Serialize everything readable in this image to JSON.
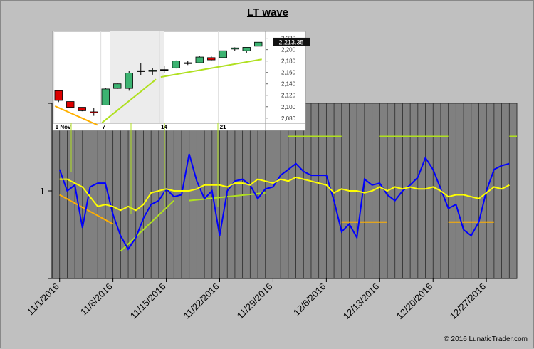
{
  "title": "LT wave",
  "copyright": "© 2016 LunaticTrader.com",
  "colors": {
    "page_bg": "#c0c0c0",
    "plot_bg": "#808080",
    "blue_line": "#0000ff",
    "yellow_line": "#ffff00",
    "orange_marker": "#ffb000",
    "lime_marker": "#b0e020",
    "green_candle": "#3cb371",
    "red_candle": "#dd0000"
  },
  "chart_data": [
    {
      "type": "line",
      "title": "LT wave",
      "ylabel": "",
      "y_tick_labels": [
        "1"
      ],
      "x_tick_labels": [
        "11/1/2016",
        "11/8/2016",
        "11/15/2016",
        "11/22/2016",
        "11/29/2016",
        "12/6/2016",
        "12/13/2016",
        "12/20/2016",
        "12/27/2016"
      ],
      "x_range": [
        "2016-10-31",
        "2016-12-31"
      ],
      "ylim": [
        0.55,
        1.45
      ],
      "grid": "vertical daily bars",
      "series": [
        {
          "color": "blue",
          "x": [
            "2016-11-01",
            "2016-11-02",
            "2016-11-03",
            "2016-11-04",
            "2016-11-05",
            "2016-11-06",
            "2016-11-07",
            "2016-11-08",
            "2016-11-09",
            "2016-11-10",
            "2016-11-11",
            "2016-11-12",
            "2016-11-13",
            "2016-11-14",
            "2016-11-15",
            "2016-11-16",
            "2016-11-17",
            "2016-11-18",
            "2016-11-19",
            "2016-11-20",
            "2016-11-21",
            "2016-11-22",
            "2016-11-23",
            "2016-11-24",
            "2016-11-25",
            "2016-11-26",
            "2016-11-27",
            "2016-11-28",
            "2016-11-29",
            "2016-11-30",
            "2016-12-01",
            "2016-12-02",
            "2016-12-03",
            "2016-12-04",
            "2016-12-05",
            "2016-12-06",
            "2016-12-07",
            "2016-12-08",
            "2016-12-09",
            "2016-12-10",
            "2016-12-11",
            "2016-12-12",
            "2016-12-13",
            "2016-12-14",
            "2016-12-15",
            "2016-12-16",
            "2016-12-17",
            "2016-12-18",
            "2016-12-19",
            "2016-12-20",
            "2016-12-21",
            "2016-12-22",
            "2016-12-23",
            "2016-12-24",
            "2016-12-25",
            "2016-12-26",
            "2016-12-27",
            "2016-12-28",
            "2016-12-29",
            "2016-12-30"
          ],
          "values": [
            1.11,
            1.0,
            1.03,
            0.81,
            1.02,
            1.04,
            1.04,
            0.88,
            0.77,
            0.7,
            0.76,
            0.86,
            0.93,
            0.95,
            1.01,
            0.97,
            0.98,
            1.19,
            1.05,
            0.96,
            1.0,
            0.77,
            1.0,
            1.05,
            1.06,
            1.03,
            0.96,
            1.01,
            1.02,
            1.08,
            1.11,
            1.14,
            1.1,
            1.08,
            1.08,
            1.08,
            0.95,
            0.79,
            0.83,
            0.76,
            1.06,
            1.03,
            1.04,
            0.98,
            0.95,
            1.0,
            1.03,
            1.07,
            1.17,
            1.11,
            1.01,
            0.91,
            0.93,
            0.8,
            0.77,
            0.84,
            1.0,
            1.11,
            1.13,
            1.14
          ]
        },
        {
          "color": "yellow",
          "x": [
            "2016-11-01",
            "2016-11-02",
            "2016-11-03",
            "2016-11-04",
            "2016-11-05",
            "2016-11-06",
            "2016-11-07",
            "2016-11-08",
            "2016-11-09",
            "2016-11-10",
            "2016-11-11",
            "2016-11-12",
            "2016-11-13",
            "2016-11-14",
            "2016-11-15",
            "2016-11-16",
            "2016-11-17",
            "2016-11-18",
            "2016-11-19",
            "2016-11-20",
            "2016-11-21",
            "2016-11-22",
            "2016-11-23",
            "2016-11-24",
            "2016-11-25",
            "2016-11-26",
            "2016-11-27",
            "2016-11-28",
            "2016-11-29",
            "2016-11-30",
            "2016-12-01",
            "2016-12-02",
            "2016-12-03",
            "2016-12-04",
            "2016-12-05",
            "2016-12-06",
            "2016-12-07",
            "2016-12-08",
            "2016-12-09",
            "2016-12-10",
            "2016-12-11",
            "2016-12-12",
            "2016-12-13",
            "2016-12-14",
            "2016-12-15",
            "2016-12-16",
            "2016-12-17",
            "2016-12-18",
            "2016-12-19",
            "2016-12-20",
            "2016-12-21",
            "2016-12-22",
            "2016-12-23",
            "2016-12-24",
            "2016-12-25",
            "2016-12-26",
            "2016-12-27",
            "2016-12-28",
            "2016-12-29",
            "2016-12-30"
          ],
          "values": [
            1.06,
            1.06,
            1.04,
            1.02,
            0.97,
            0.92,
            0.93,
            0.92,
            0.9,
            0.92,
            0.9,
            0.93,
            0.99,
            1.0,
            1.01,
            1.0,
            1.0,
            1.0,
            1.01,
            1.03,
            1.03,
            1.03,
            1.02,
            1.04,
            1.04,
            1.03,
            1.06,
            1.05,
            1.04,
            1.06,
            1.05,
            1.07,
            1.06,
            1.05,
            1.04,
            1.03,
            0.99,
            1.01,
            1.0,
            1.0,
            0.99,
            1.0,
            1.02,
            1.0,
            1.02,
            1.01,
            1.02,
            1.01,
            1.01,
            1.02,
            1.0,
            0.97,
            0.98,
            0.98,
            0.97,
            0.96,
            0.99,
            1.02,
            1.01,
            1.03
          ]
        }
      ],
      "horizontal_markers": [
        {
          "color": "yellow-green",
          "from": "2016-12-01",
          "to": "2016-12-08",
          "y": 1.28
        },
        {
          "color": "orange",
          "from": "2016-12-08",
          "to": "2016-12-14",
          "y": 0.84
        },
        {
          "color": "yellow-green",
          "from": "2016-12-13",
          "to": "2016-12-22",
          "y": 1.28
        },
        {
          "color": "orange",
          "from": "2016-12-22",
          "to": "2016-12-28",
          "y": 0.84
        },
        {
          "color": "yellow-green",
          "from": "2016-12-30",
          "to": "2016-12-31",
          "y": 1.28
        }
      ],
      "trend_markers": [
        {
          "color": "orange",
          "from": [
            "2016-11-01",
            0.98
          ],
          "to": [
            "2016-11-08",
            0.83
          ]
        },
        {
          "color": "yellow-green",
          "from": [
            "2016-11-09",
            0.69
          ],
          "to": [
            "2016-11-16",
            0.95
          ]
        },
        {
          "color": "yellow-green",
          "from": [
            "2016-11-18",
            0.95
          ],
          "to": [
            "2016-11-28",
            0.99
          ]
        }
      ]
    },
    {
      "type": "candlestick",
      "x_tick_labels": [
        "1 Nov",
        "7",
        "14",
        "21"
      ],
      "y_tick_labels": [
        "2,220",
        "2,200",
        "2,180",
        "2,160",
        "2,140",
        "2,120",
        "2,100",
        "2,080"
      ],
      "ylim": [
        2071,
        2232
      ],
      "last_price_label": "2,213.35",
      "candles": [
        {
          "date": "2016-11-01",
          "open": 2128,
          "high": 2128,
          "low": 2108,
          "close": 2111
        },
        {
          "date": "2016-11-02",
          "open": 2109,
          "high": 2109,
          "low": 2099,
          "close": 2099
        },
        {
          "date": "2016-11-03",
          "open": 2099,
          "high": 2099,
          "low": 2092,
          "close": 2093
        },
        {
          "date": "2016-11-04",
          "open": 2091,
          "high": 2098,
          "low": 2084,
          "close": 2089
        },
        {
          "date": "2016-11-07",
          "open": 2103,
          "high": 2133,
          "low": 2103,
          "close": 2131
        },
        {
          "date": "2016-11-08",
          "open": 2132,
          "high": 2141,
          "low": 2131,
          "close": 2140
        },
        {
          "date": "2016-11-09",
          "open": 2132,
          "high": 2163,
          "low": 2128,
          "close": 2159
        },
        {
          "date": "2016-11-10",
          "open": 2163,
          "high": 2176,
          "low": 2155,
          "close": 2163
        },
        {
          "date": "2016-11-11",
          "open": 2162,
          "high": 2168,
          "low": 2156,
          "close": 2164
        },
        {
          "date": "2016-11-14",
          "open": 2165,
          "high": 2172,
          "low": 2159,
          "close": 2164
        },
        {
          "date": "2016-11-15",
          "open": 2168,
          "high": 2181,
          "low": 2167,
          "close": 2180
        },
        {
          "date": "2016-11-16",
          "open": 2177,
          "high": 2180,
          "low": 2173,
          "close": 2176
        },
        {
          "date": "2016-11-17",
          "open": 2177,
          "high": 2189,
          "low": 2176,
          "close": 2187
        },
        {
          "date": "2016-11-18",
          "open": 2186,
          "high": 2189,
          "low": 2180,
          "close": 2182
        },
        {
          "date": "2016-11-21",
          "open": 2186,
          "high": 2198,
          "low": 2186,
          "close": 2198
        },
        {
          "date": "2016-11-22",
          "open": 2201,
          "high": 2204,
          "low": 2198,
          "close": 2203
        },
        {
          "date": "2016-11-23",
          "open": 2198,
          "high": 2204,
          "low": 2194,
          "close": 2204
        },
        {
          "date": "2016-11-25",
          "open": 2206,
          "high": 2213,
          "low": 2206,
          "close": 2213
        }
      ],
      "trend_lines": [
        {
          "from": [
            "2016-11-01",
            2101
          ],
          "to": [
            "2016-11-04",
            2068
          ]
        },
        {
          "from": [
            "2016-11-07",
            2072
          ],
          "to": [
            "2016-11-11",
            2148
          ]
        },
        {
          "from": [
            "2016-11-14",
            2152
          ],
          "to": [
            "2016-11-25",
            2183
          ]
        }
      ]
    }
  ]
}
